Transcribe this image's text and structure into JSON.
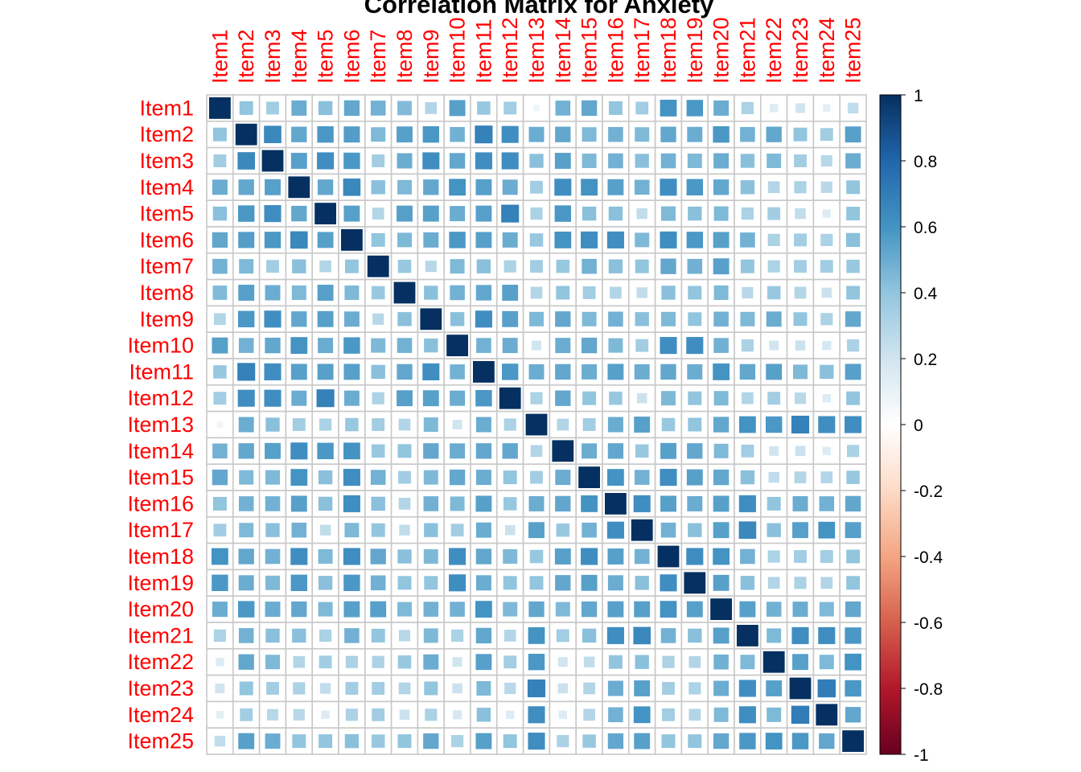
{
  "chart_data": {
    "type": "heatmap",
    "title": "Correlation Matrix for Anxiety",
    "labels": [
      "Item1",
      "Item2",
      "Item3",
      "Item4",
      "Item5",
      "Item6",
      "Item7",
      "Item8",
      "Item9",
      "Item10",
      "Item11",
      "Item12",
      "Item13",
      "Item14",
      "Item15",
      "Item16",
      "Item17",
      "Item18",
      "Item19",
      "Item20",
      "Item21",
      "Item22",
      "Item23",
      "Item24",
      "Item25"
    ],
    "values": [
      [
        1.0,
        0.4,
        0.35,
        0.5,
        0.42,
        0.52,
        0.48,
        0.44,
        0.3,
        0.55,
        0.38,
        0.35,
        0.08,
        0.48,
        0.52,
        0.4,
        0.35,
        0.6,
        0.58,
        0.5,
        0.32,
        0.15,
        0.2,
        0.12,
        0.25
      ],
      [
        0.4,
        1.0,
        0.65,
        0.52,
        0.58,
        0.56,
        0.45,
        0.55,
        0.58,
        0.48,
        0.68,
        0.62,
        0.5,
        0.52,
        0.45,
        0.48,
        0.45,
        0.52,
        0.5,
        0.58,
        0.48,
        0.52,
        0.4,
        0.35,
        0.55
      ],
      [
        0.35,
        0.65,
        1.0,
        0.55,
        0.62,
        0.58,
        0.35,
        0.5,
        0.62,
        0.52,
        0.62,
        0.62,
        0.42,
        0.55,
        0.45,
        0.48,
        0.42,
        0.48,
        0.45,
        0.5,
        0.42,
        0.45,
        0.35,
        0.28,
        0.5
      ],
      [
        0.5,
        0.52,
        0.55,
        1.0,
        0.52,
        0.65,
        0.42,
        0.45,
        0.52,
        0.6,
        0.55,
        0.5,
        0.35,
        0.62,
        0.6,
        0.55,
        0.48,
        0.62,
        0.58,
        0.52,
        0.42,
        0.3,
        0.32,
        0.28,
        0.4
      ],
      [
        0.42,
        0.58,
        0.62,
        0.52,
        1.0,
        0.55,
        0.3,
        0.55,
        0.55,
        0.5,
        0.55,
        0.68,
        0.32,
        0.58,
        0.42,
        0.42,
        0.25,
        0.45,
        0.42,
        0.45,
        0.32,
        0.35,
        0.25,
        0.15,
        0.4
      ],
      [
        0.52,
        0.56,
        0.58,
        0.65,
        0.55,
        1.0,
        0.4,
        0.45,
        0.5,
        0.58,
        0.55,
        0.5,
        0.38,
        0.6,
        0.62,
        0.62,
        0.45,
        0.62,
        0.58,
        0.55,
        0.48,
        0.32,
        0.35,
        0.32,
        0.42
      ],
      [
        0.48,
        0.45,
        0.35,
        0.42,
        0.3,
        0.4,
        1.0,
        0.38,
        0.28,
        0.45,
        0.42,
        0.32,
        0.35,
        0.38,
        0.48,
        0.42,
        0.4,
        0.52,
        0.48,
        0.55,
        0.4,
        0.32,
        0.35,
        0.35,
        0.38
      ],
      [
        0.44,
        0.55,
        0.5,
        0.45,
        0.55,
        0.45,
        0.38,
        1.0,
        0.42,
        0.48,
        0.52,
        0.55,
        0.3,
        0.4,
        0.35,
        0.3,
        0.25,
        0.42,
        0.4,
        0.45,
        0.28,
        0.38,
        0.3,
        0.22,
        0.4
      ],
      [
        0.3,
        0.58,
        0.62,
        0.52,
        0.55,
        0.5,
        0.28,
        0.42,
        1.0,
        0.42,
        0.62,
        0.55,
        0.45,
        0.52,
        0.45,
        0.48,
        0.42,
        0.45,
        0.4,
        0.48,
        0.45,
        0.5,
        0.4,
        0.32,
        0.52
      ],
      [
        0.55,
        0.48,
        0.52,
        0.6,
        0.5,
        0.58,
        0.45,
        0.48,
        0.42,
        1.0,
        0.48,
        0.5,
        0.2,
        0.5,
        0.52,
        0.45,
        0.35,
        0.62,
        0.62,
        0.48,
        0.32,
        0.2,
        0.22,
        0.18,
        0.32
      ],
      [
        0.38,
        0.68,
        0.62,
        0.55,
        0.55,
        0.55,
        0.42,
        0.52,
        0.62,
        0.48,
        1.0,
        0.58,
        0.5,
        0.52,
        0.5,
        0.55,
        0.5,
        0.52,
        0.5,
        0.6,
        0.52,
        0.55,
        0.45,
        0.42,
        0.55
      ],
      [
        0.35,
        0.62,
        0.62,
        0.5,
        0.68,
        0.5,
        0.32,
        0.55,
        0.55,
        0.5,
        0.58,
        1.0,
        0.32,
        0.52,
        0.4,
        0.38,
        0.22,
        0.45,
        0.4,
        0.45,
        0.3,
        0.35,
        0.28,
        0.15,
        0.4
      ],
      [
        0.08,
        0.5,
        0.42,
        0.35,
        0.32,
        0.38,
        0.35,
        0.3,
        0.45,
        0.2,
        0.5,
        0.32,
        1.0,
        0.3,
        0.35,
        0.5,
        0.55,
        0.38,
        0.4,
        0.52,
        0.6,
        0.58,
        0.68,
        0.62,
        0.62
      ],
      [
        0.48,
        0.52,
        0.55,
        0.62,
        0.58,
        0.6,
        0.38,
        0.4,
        0.52,
        0.5,
        0.52,
        0.52,
        0.3,
        1.0,
        0.5,
        0.52,
        0.38,
        0.55,
        0.52,
        0.45,
        0.35,
        0.2,
        0.22,
        0.15,
        0.32
      ],
      [
        0.52,
        0.45,
        0.45,
        0.6,
        0.42,
        0.62,
        0.48,
        0.35,
        0.45,
        0.52,
        0.5,
        0.4,
        0.35,
        0.5,
        1.0,
        0.6,
        0.48,
        0.62,
        0.55,
        0.52,
        0.42,
        0.25,
        0.3,
        0.3,
        0.38
      ],
      [
        0.4,
        0.48,
        0.48,
        0.55,
        0.42,
        0.62,
        0.42,
        0.3,
        0.48,
        0.45,
        0.55,
        0.38,
        0.5,
        0.52,
        0.6,
        1.0,
        0.62,
        0.55,
        0.5,
        0.55,
        0.62,
        0.4,
        0.5,
        0.48,
        0.52
      ],
      [
        0.35,
        0.45,
        0.42,
        0.48,
        0.25,
        0.45,
        0.4,
        0.25,
        0.42,
        0.35,
        0.5,
        0.22,
        0.55,
        0.38,
        0.48,
        0.62,
        1.0,
        0.48,
        0.42,
        0.55,
        0.65,
        0.42,
        0.55,
        0.6,
        0.55
      ],
      [
        0.6,
        0.52,
        0.48,
        0.62,
        0.45,
        0.62,
        0.52,
        0.42,
        0.45,
        0.62,
        0.52,
        0.45,
        0.38,
        0.55,
        0.62,
        0.55,
        0.48,
        1.0,
        0.62,
        0.6,
        0.48,
        0.32,
        0.35,
        0.35,
        0.4
      ],
      [
        0.58,
        0.5,
        0.45,
        0.58,
        0.42,
        0.58,
        0.48,
        0.4,
        0.4,
        0.62,
        0.5,
        0.4,
        0.4,
        0.52,
        0.55,
        0.5,
        0.42,
        0.62,
        1.0,
        0.55,
        0.42,
        0.3,
        0.32,
        0.3,
        0.4
      ],
      [
        0.5,
        0.58,
        0.5,
        0.52,
        0.45,
        0.55,
        0.55,
        0.45,
        0.48,
        0.48,
        0.6,
        0.45,
        0.52,
        0.45,
        0.52,
        0.55,
        0.55,
        0.6,
        0.55,
        1.0,
        0.55,
        0.48,
        0.5,
        0.45,
        0.52
      ],
      [
        0.32,
        0.48,
        0.42,
        0.42,
        0.32,
        0.48,
        0.4,
        0.28,
        0.45,
        0.32,
        0.52,
        0.3,
        0.6,
        0.35,
        0.42,
        0.62,
        0.65,
        0.48,
        0.42,
        0.55,
        1.0,
        0.45,
        0.62,
        0.62,
        0.58
      ],
      [
        0.15,
        0.52,
        0.45,
        0.3,
        0.35,
        0.32,
        0.32,
        0.38,
        0.5,
        0.2,
        0.55,
        0.35,
        0.58,
        0.2,
        0.25,
        0.4,
        0.42,
        0.32,
        0.3,
        0.48,
        0.45,
        1.0,
        0.55,
        0.45,
        0.6
      ],
      [
        0.2,
        0.4,
        0.35,
        0.32,
        0.25,
        0.35,
        0.35,
        0.3,
        0.4,
        0.22,
        0.45,
        0.28,
        0.68,
        0.22,
        0.3,
        0.5,
        0.55,
        0.35,
        0.32,
        0.5,
        0.62,
        0.55,
        1.0,
        0.7,
        0.58
      ],
      [
        0.12,
        0.35,
        0.28,
        0.28,
        0.15,
        0.32,
        0.35,
        0.22,
        0.32,
        0.18,
        0.42,
        0.15,
        0.62,
        0.15,
        0.3,
        0.48,
        0.6,
        0.35,
        0.3,
        0.45,
        0.62,
        0.45,
        0.7,
        1.0,
        0.52
      ],
      [
        0.25,
        0.55,
        0.5,
        0.4,
        0.4,
        0.42,
        0.38,
        0.4,
        0.52,
        0.32,
        0.55,
        0.4,
        0.62,
        0.32,
        0.38,
        0.52,
        0.55,
        0.4,
        0.4,
        0.52,
        0.58,
        0.6,
        0.58,
        0.52,
        1.0
      ]
    ],
    "legend": {
      "placement": "right",
      "range": [
        -1,
        1
      ],
      "tick_labels": [
        "1",
        "0.8",
        "0.6",
        "0.4",
        "0.2",
        "0",
        "-0.2",
        "-0.4",
        "-0.6",
        "-0.8",
        "-1"
      ]
    },
    "colors": {
      "label_color": "#ff0000",
      "cell_border": "#c8c8c8",
      "scale": [
        "#67001f",
        "#b2182b",
        "#d6604d",
        "#f4a582",
        "#fddbc7",
        "#ffffff",
        "#d1e5f0",
        "#92c5de",
        "#4393c3",
        "#2166ac",
        "#053061"
      ]
    }
  }
}
